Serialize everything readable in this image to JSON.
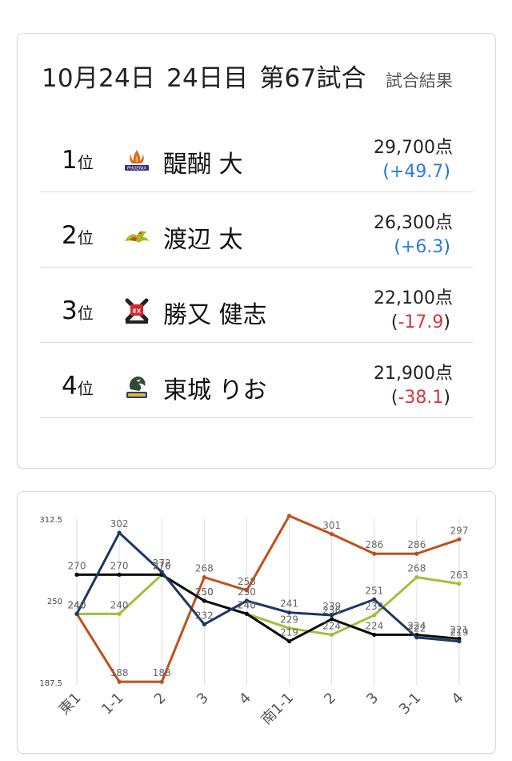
{
  "header": {
    "date": "10月24日",
    "day": "24日目",
    "game": "第67試合",
    "subtitle": "試合結果"
  },
  "results": [
    {
      "rank": "1",
      "rank_suffix": "位",
      "name": "醍醐 大",
      "team_icon": "phoenix-logo-icon",
      "score": "29,700点",
      "delta": "+49.7",
      "sign": "pos",
      "color": "#c0501a"
    },
    {
      "rank": "2",
      "rank_suffix": "位",
      "name": "渡辺 太",
      "team_icon": "dragon-logo-icon",
      "score": "26,300点",
      "delta": "+6.3",
      "sign": "pos",
      "color": "#9dc13b"
    },
    {
      "rank": "3",
      "rank_suffix": "位",
      "name": "勝又 健志",
      "team_icon": "eex-logo-icon",
      "score": "22,100点",
      "delta": "-17.9",
      "sign": "neg",
      "color": "#0b0b0b"
    },
    {
      "rank": "4",
      "rank_suffix": "位",
      "name": "東城 りお",
      "team_icon": "beast-logo-icon",
      "score": "21,900点",
      "delta": "-38.1",
      "sign": "neg",
      "color": "#1b3864"
    }
  ],
  "colors": {
    "positive": "#2a7de1",
    "negative": "#d9363e",
    "grid": "#dedede"
  },
  "chart_data": {
    "type": "line",
    "categories": [
      "東1",
      "1-1",
      "2",
      "3",
      "4",
      "南1-1",
      "2",
      "3",
      "3-1",
      "4"
    ],
    "ylim": [
      187.5,
      312.5
    ],
    "yticks": [
      "312.5",
      "250",
      "187.5"
    ],
    "grid": "vertical",
    "series": [
      {
        "color": "#c0501a",
        "values": [
          240,
          188,
          188,
          268,
          258,
          315,
          301,
          286,
          286,
          297
        ]
      },
      {
        "color": "#9dc13b",
        "values": [
          240,
          240,
          270,
          250,
          240,
          229,
          224,
          239,
          268,
          263
        ]
      },
      {
        "color": "#0b0b0b",
        "values": [
          270,
          270,
          270,
          250,
          240,
          219,
          236,
          224,
          224,
          221
        ]
      },
      {
        "color": "#1b3864",
        "values": [
          240,
          302,
          272,
          232,
          250,
          241,
          239,
          251,
          222,
          219
        ]
      }
    ],
    "data_labels": [
      [
        "240",
        "188",
        "188",
        "268",
        "258",
        "",
        "301",
        "286",
        "286",
        "297"
      ],
      [
        "240",
        "240",
        "270",
        "250",
        "240",
        "229",
        "224",
        "239",
        "268",
        "263"
      ],
      [
        "270",
        "270",
        "270",
        "250",
        "240",
        "219",
        "236",
        "224",
        "224",
        "221"
      ],
      [
        "240",
        "302",
        "272",
        "232",
        "250",
        "241",
        "239",
        "251",
        "222",
        "219"
      ]
    ]
  }
}
